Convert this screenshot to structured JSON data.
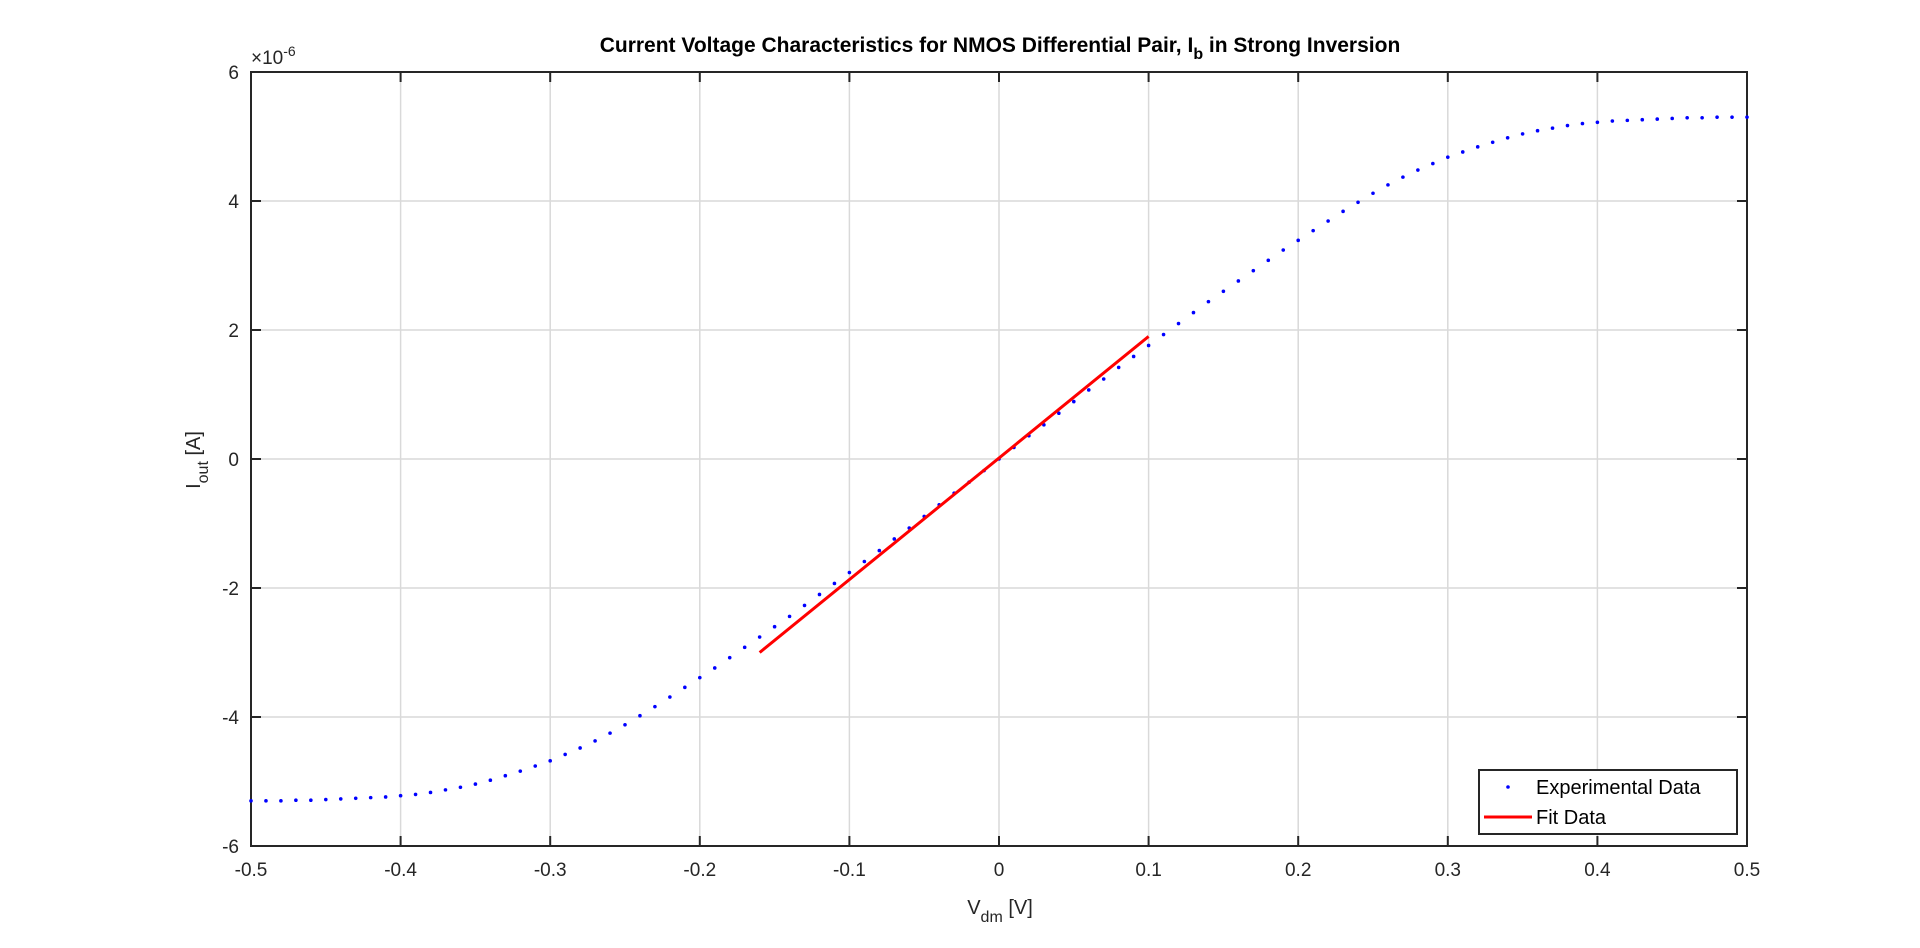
{
  "chart_data": {
    "type": "line",
    "title": {
      "main": "Current Voltage Characteristics for NMOS Differential Pair, I",
      "sub": "b",
      "suffix": " in Strong Inversion"
    },
    "xlabel": {
      "main": "V",
      "sub": "dm",
      "suffix": " [V]"
    },
    "ylabel": {
      "main": "I",
      "sub": "out",
      "suffix": " [A]"
    },
    "y_exponent": {
      "base": "×10",
      "power": "-6"
    },
    "xlim": [
      -0.5,
      0.5
    ],
    "ylim": [
      -6e-06,
      6e-06
    ],
    "x_ticks": [
      -0.5,
      -0.4,
      -0.3,
      -0.2,
      -0.1,
      0,
      0.1,
      0.2,
      0.3,
      0.4,
      0.5
    ],
    "x_tick_labels": [
      "-0.5",
      "-0.4",
      "-0.3",
      "-0.2",
      "-0.1",
      "0",
      "0.1",
      "0.2",
      "0.3",
      "0.4",
      "0.5"
    ],
    "y_ticks": [
      -6e-06,
      -4e-06,
      -2e-06,
      0,
      2e-06,
      4e-06,
      6e-06
    ],
    "y_tick_labels": [
      "-6",
      "-4",
      "-2",
      "0",
      "2",
      "4",
      "6"
    ],
    "grid": true,
    "legend_position": "bottom-right",
    "series": [
      {
        "name": "Experimental Data",
        "style": "dots",
        "color": "#0000ff",
        "x": [
          -0.5,
          -0.49,
          -0.48,
          -0.47,
          -0.46,
          -0.45,
          -0.44,
          -0.43,
          -0.42,
          -0.41,
          -0.4,
          -0.39,
          -0.38,
          -0.37,
          -0.36,
          -0.35,
          -0.34,
          -0.33,
          -0.32,
          -0.31,
          -0.3,
          -0.29,
          -0.28,
          -0.27,
          -0.26,
          -0.25,
          -0.24,
          -0.23,
          -0.22,
          -0.21,
          -0.2,
          -0.19,
          -0.18,
          -0.17,
          -0.16,
          -0.15,
          -0.14,
          -0.13,
          -0.12,
          -0.11,
          -0.1,
          -0.09,
          -0.08,
          -0.07,
          -0.06,
          -0.05,
          -0.04,
          -0.03,
          -0.02,
          -0.01,
          0,
          0.01,
          0.02,
          0.03,
          0.04,
          0.05,
          0.06,
          0.07,
          0.08,
          0.09,
          0.1,
          0.11,
          0.12,
          0.13,
          0.14,
          0.15,
          0.16,
          0.17,
          0.18,
          0.19,
          0.2,
          0.21,
          0.22,
          0.23,
          0.24,
          0.25,
          0.26,
          0.27,
          0.28,
          0.29,
          0.3,
          0.31,
          0.32,
          0.33,
          0.34,
          0.35,
          0.36,
          0.37,
          0.38,
          0.39,
          0.4,
          0.41,
          0.42,
          0.43,
          0.44,
          0.45,
          0.46,
          0.47,
          0.48,
          0.49,
          0.5
        ],
        "y": [
          -5.3e-06,
          -5.3e-06,
          -5.3e-06,
          -5.29e-06,
          -5.29e-06,
          -5.28e-06,
          -5.27e-06,
          -5.26e-06,
          -5.25e-06,
          -5.24e-06,
          -5.22e-06,
          -5.2e-06,
          -5.17e-06,
          -5.13e-06,
          -5.09e-06,
          -5.04e-06,
          -4.98e-06,
          -4.91e-06,
          -4.84e-06,
          -4.76e-06,
          -4.68e-06,
          -4.58e-06,
          -4.48e-06,
          -4.37e-06,
          -4.25e-06,
          -4.12e-06,
          -3.98e-06,
          -3.84e-06,
          -3.69e-06,
          -3.54e-06,
          -3.39e-06,
          -3.24e-06,
          -3.08e-06,
          -2.92e-06,
          -2.76e-06,
          -2.6e-06,
          -2.44e-06,
          -2.27e-06,
          -2.1e-06,
          -1.93e-06,
          -1.76e-06,
          -1.59e-06,
          -1.42e-06,
          -1.24e-06,
          -1.07e-06,
          -8.9e-07,
          -7.1e-07,
          -5.3e-07,
          -3.6e-07,
          -1.8e-07,
          0,
          1.8e-07,
          3.6e-07,
          5.3e-07,
          7.1e-07,
          8.9e-07,
          1.07e-06,
          1.24e-06,
          1.42e-06,
          1.59e-06,
          1.76e-06,
          1.93e-06,
          2.1e-06,
          2.27e-06,
          2.44e-06,
          2.6e-06,
          2.76e-06,
          2.92e-06,
          3.08e-06,
          3.24e-06,
          3.39e-06,
          3.54e-06,
          3.69e-06,
          3.84e-06,
          3.98e-06,
          4.12e-06,
          4.25e-06,
          4.37e-06,
          4.48e-06,
          4.58e-06,
          4.68e-06,
          4.76e-06,
          4.84e-06,
          4.91e-06,
          4.98e-06,
          5.04e-06,
          5.09e-06,
          5.13e-06,
          5.17e-06,
          5.2e-06,
          5.22e-06,
          5.24e-06,
          5.25e-06,
          5.26e-06,
          5.27e-06,
          5.28e-06,
          5.29e-06,
          5.29e-06,
          5.3e-06,
          5.3e-06,
          5.3e-06
        ]
      },
      {
        "name": "Fit Data",
        "style": "line",
        "color": "#ff0000",
        "x": [
          -0.16,
          0.1
        ],
        "y": [
          -3e-06,
          1.9e-06
        ]
      }
    ]
  }
}
